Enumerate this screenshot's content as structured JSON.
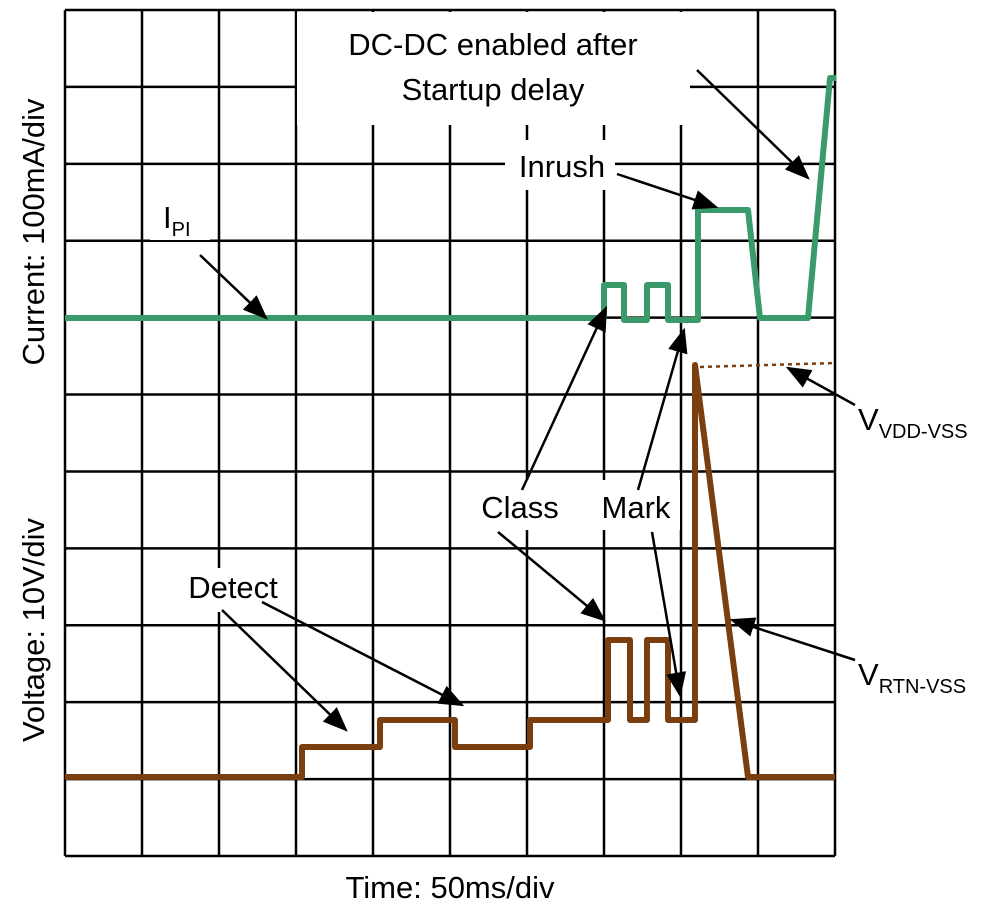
{
  "axes": {
    "y_current": "Current: 100mA/div",
    "y_voltage": "Voltage: 10V/div",
    "x_time": "Time: 50ms/div"
  },
  "annotations": {
    "dcdc": [
      "DC-DC enabled after",
      "Startup delay"
    ],
    "inrush": "Inrush",
    "class": "Class",
    "mark": "Mark",
    "detect": "Detect"
  },
  "signals": {
    "ipi": {
      "main": "I",
      "sub": "PI"
    },
    "vdd": {
      "main": "V",
      "sub": "VDD-VSS"
    },
    "vrtn": {
      "main": "V",
      "sub": "RTN-VSS"
    }
  }
}
